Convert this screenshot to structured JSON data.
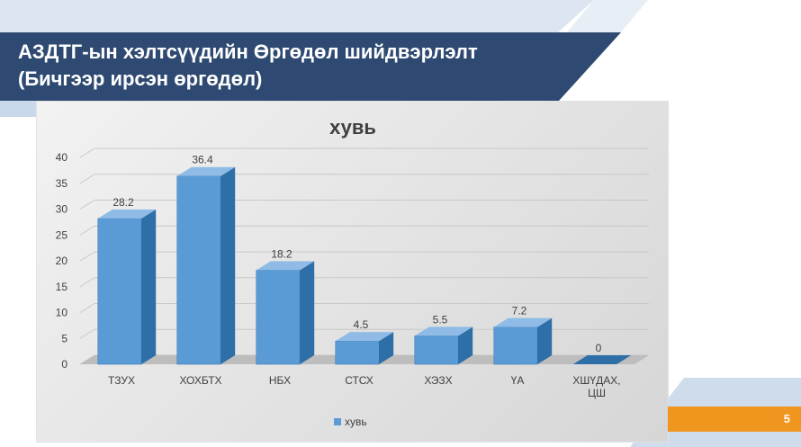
{
  "slide": {
    "title_line1": "АЗДТГ-ын хэлтсүүдийн Өргөдөл шийдвэрлэлт",
    "title_line2": "(Бичгээр ирсэн өргөдөл)",
    "page_number": "5"
  },
  "colors": {
    "title_band": "#2f4a72",
    "bar_front": "#5b9bd5",
    "bar_side": "#2e6fa8",
    "bar_top": "#8fbbe6",
    "accent": "#f0961e"
  },
  "chart_data": {
    "type": "bar",
    "title": "хувь",
    "categories": [
      "ТЗУХ",
      "ХОХБТХ",
      "НБХ",
      "СТСХ",
      "ХЭЗХ",
      "ҮА",
      "ХШҮДАХ,|ЦШ"
    ],
    "series": [
      {
        "name": "хувь",
        "values": [
          28.2,
          36.4,
          18.2,
          4.5,
          5.5,
          7.2,
          0
        ]
      }
    ],
    "data_labels": [
      "28.2",
      "36.4",
      "18.2",
      "4.5",
      "5.5",
      "7.2",
      "0"
    ],
    "ylim": [
      0,
      40
    ],
    "yticks": [
      "0",
      "5",
      "10",
      "15",
      "20",
      "25",
      "30",
      "35",
      "40"
    ],
    "legend_position": "bottom",
    "grid": true,
    "style": "3d-column"
  }
}
